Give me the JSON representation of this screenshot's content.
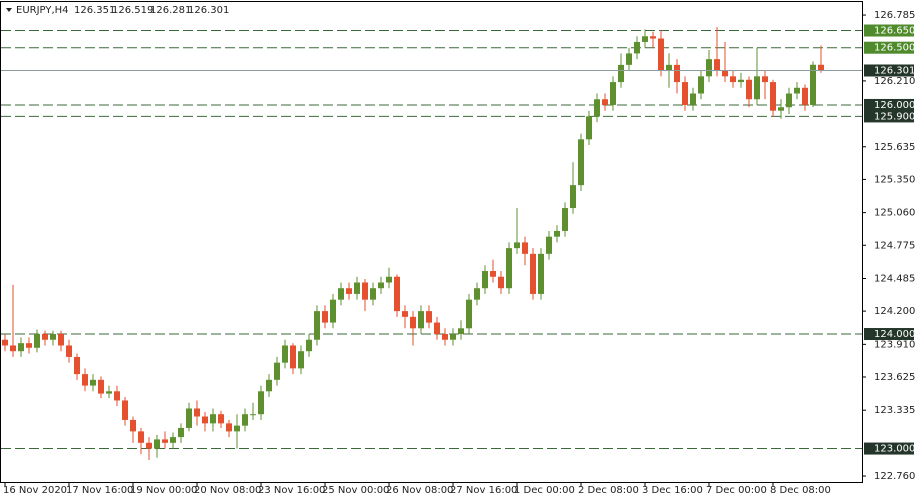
{
  "chart_data": {
    "type": "candlestick",
    "symbol": "EURJPY,H4",
    "categories": [
      "16 Nov 2020",
      null,
      null,
      null,
      null,
      null,
      null,
      null,
      "17 Nov 16:00",
      null,
      null,
      null,
      null,
      null,
      null,
      null,
      "19 Nov 00:00",
      null,
      null,
      null,
      null,
      null,
      null,
      null,
      "20 Nov 08:00",
      null,
      null,
      null,
      null,
      null,
      null,
      null,
      "23 Nov 16:00",
      null,
      null,
      null,
      null,
      null,
      null,
      null,
      "25 Nov 00:00",
      null,
      null,
      null,
      null,
      null,
      null,
      null,
      "26 Nov 08:00",
      null,
      null,
      null,
      null,
      null,
      null,
      null,
      "27 Nov 16:00",
      null,
      null,
      null,
      null,
      null,
      null,
      null,
      "1 Dec 00:00",
      null,
      null,
      null,
      null,
      null,
      null,
      null,
      "2 Dec 08:00",
      null,
      null,
      null,
      null,
      null,
      null,
      null,
      "3 Dec 16:00",
      null,
      null,
      null,
      null,
      null,
      null,
      null,
      "7 Dec 00:00",
      null,
      null,
      null,
      null,
      null,
      null,
      null,
      "8 Dec 08:00",
      null,
      null,
      null,
      null,
      null,
      null
    ],
    "open": [
      123.95,
      123.9,
      123.85,
      123.92,
      123.88,
      124.0,
      123.95,
      124.0,
      123.9,
      123.8,
      123.65,
      123.55,
      123.6,
      123.48,
      123.5,
      123.42,
      123.25,
      123.15,
      123.05,
      123.0,
      123.08,
      123.05,
      123.1,
      123.18,
      123.35,
      123.28,
      123.22,
      123.3,
      123.22,
      123.15,
      123.2,
      123.3,
      123.3,
      123.5,
      123.6,
      123.75,
      123.9,
      123.7,
      123.85,
      123.95,
      124.2,
      124.1,
      124.3,
      124.4,
      124.35,
      124.45,
      124.3,
      124.4,
      124.45,
      124.5,
      124.2,
      124.15,
      124.05,
      124.2,
      124.1,
      124.0,
      123.95,
      124.0,
      124.05,
      124.3,
      124.4,
      124.55,
      124.5,
      124.4,
      124.75,
      124.8,
      124.7,
      124.35,
      124.7,
      124.85,
      124.9,
      125.1,
      125.3,
      125.7,
      125.9,
      126.05,
      126.0,
      126.2,
      126.35,
      126.45,
      126.55,
      126.6,
      126.58,
      126.3,
      126.35,
      126.2,
      126.0,
      126.1,
      126.25,
      126.4,
      126.3,
      126.25,
      126.2,
      126.22,
      126.05,
      126.25,
      126.2,
      125.95,
      125.98,
      126.1,
      126.15,
      126.0,
      126.351
    ],
    "high": [
      124.0,
      124.43,
      123.97,
      123.97,
      124.04,
      124.03,
      124.03,
      124.03,
      123.95,
      123.83,
      123.7,
      123.65,
      123.63,
      123.55,
      123.55,
      123.45,
      123.28,
      123.18,
      123.1,
      123.12,
      123.15,
      123.14,
      123.22,
      123.4,
      123.42,
      123.32,
      123.35,
      123.33,
      123.25,
      123.3,
      123.35,
      123.4,
      123.55,
      123.65,
      123.8,
      123.95,
      123.92,
      123.9,
      124.0,
      124.25,
      124.25,
      124.35,
      124.45,
      124.45,
      124.5,
      124.48,
      124.45,
      124.5,
      124.58,
      124.52,
      124.25,
      124.2,
      124.25,
      124.25,
      124.15,
      124.05,
      124.05,
      124.12,
      124.35,
      124.45,
      124.6,
      124.65,
      124.55,
      124.8,
      125.1,
      124.85,
      124.75,
      124.75,
      124.9,
      124.95,
      125.15,
      125.5,
      125.75,
      125.95,
      126.1,
      126.1,
      126.25,
      126.45,
      126.5,
      126.6,
      126.66,
      126.64,
      126.65,
      126.45,
      126.4,
      126.25,
      126.15,
      126.3,
      126.48,
      126.68,
      126.55,
      126.3,
      126.28,
      126.25,
      126.5,
      126.3,
      126.22,
      126.05,
      126.15,
      126.2,
      126.18,
      126.38,
      126.519
    ],
    "low": [
      123.85,
      123.8,
      123.8,
      123.83,
      123.84,
      123.9,
      123.9,
      123.85,
      123.75,
      123.6,
      123.5,
      123.5,
      123.44,
      123.44,
      123.37,
      123.2,
      123.05,
      122.95,
      122.9,
      122.92,
      123.0,
      123.0,
      123.05,
      123.15,
      123.2,
      123.15,
      123.15,
      123.18,
      123.1,
      123.0,
      123.15,
      123.25,
      123.25,
      123.45,
      123.55,
      123.7,
      123.65,
      123.65,
      123.8,
      123.9,
      124.05,
      124.05,
      124.25,
      124.3,
      124.3,
      124.2,
      124.25,
      124.35,
      124.4,
      124.15,
      124.05,
      123.9,
      124.0,
      124.05,
      123.95,
      123.9,
      123.9,
      123.95,
      124.0,
      124.25,
      124.35,
      124.45,
      124.35,
      124.35,
      124.7,
      124.6,
      124.3,
      124.3,
      124.65,
      124.8,
      124.85,
      125.05,
      125.25,
      125.65,
      125.85,
      125.95,
      125.95,
      126.15,
      126.3,
      126.4,
      126.5,
      126.5,
      126.25,
      126.15,
      126.1,
      125.95,
      125.95,
      126.05,
      126.2,
      126.25,
      126.2,
      126.15,
      126.15,
      125.98,
      126.0,
      126.05,
      125.9,
      125.88,
      125.92,
      126.05,
      125.95,
      125.98,
      126.281
    ],
    "close": [
      123.9,
      123.85,
      123.92,
      123.88,
      124.0,
      123.95,
      124.0,
      123.9,
      123.8,
      123.65,
      123.55,
      123.6,
      123.48,
      123.5,
      123.42,
      123.25,
      123.15,
      123.05,
      123.0,
      123.08,
      123.05,
      123.1,
      123.18,
      123.35,
      123.28,
      123.22,
      123.3,
      123.22,
      123.15,
      123.2,
      123.3,
      123.3,
      123.5,
      123.6,
      123.75,
      123.9,
      123.7,
      123.85,
      123.95,
      124.2,
      124.1,
      124.3,
      124.4,
      124.35,
      124.45,
      124.3,
      124.4,
      124.45,
      124.5,
      124.2,
      124.15,
      124.05,
      124.2,
      124.1,
      124.0,
      123.95,
      124.0,
      124.05,
      124.3,
      124.4,
      124.55,
      124.5,
      124.4,
      124.75,
      124.8,
      124.7,
      124.35,
      124.7,
      124.85,
      124.9,
      125.1,
      125.3,
      125.7,
      125.9,
      126.05,
      126.0,
      126.2,
      126.35,
      126.45,
      126.55,
      126.6,
      126.58,
      126.3,
      126.35,
      126.2,
      126.0,
      126.1,
      126.25,
      126.4,
      126.3,
      126.25,
      126.2,
      126.22,
      126.05,
      126.25,
      126.2,
      125.95,
      125.98,
      126.1,
      126.15,
      126.0,
      126.351,
      126.301
    ],
    "up_color": "#5f9030",
    "down_color": "#e5502e",
    "ylim": [
      122.708,
      126.899
    ],
    "yticks": [
      126.785,
      {
        "value": 126.21,
        "label": "126.210"
      },
      125.635,
      {
        "value": 125.35,
        "label": "125.350"
      },
      {
        "value": 125.06,
        "label": "125.060"
      },
      124.775,
      124.485,
      {
        "value": 124.2,
        "label": "124.200"
      },
      {
        "value": 123.91,
        "label": "123.910"
      },
      123.625,
      123.335,
      {
        "value": 122.76,
        "label": "122.760"
      }
    ],
    "levels": [
      {
        "value": 126.65,
        "label": "126.650",
        "color": "#4f8a2c"
      },
      {
        "value": 126.5,
        "label": "126.500",
        "color": "#4f8a2c"
      },
      {
        "value": 126.0,
        "label": "126.000",
        "color": "#24352a"
      },
      {
        "value": 125.9,
        "label": "125.900",
        "color": "#24352a"
      },
      {
        "value": 124.0,
        "label": "124.000",
        "color": "#24352a"
      },
      {
        "value": 123.0,
        "label": "123.000",
        "color": "#24352a"
      }
    ],
    "current_color": "#8c9c9c"
  }
}
